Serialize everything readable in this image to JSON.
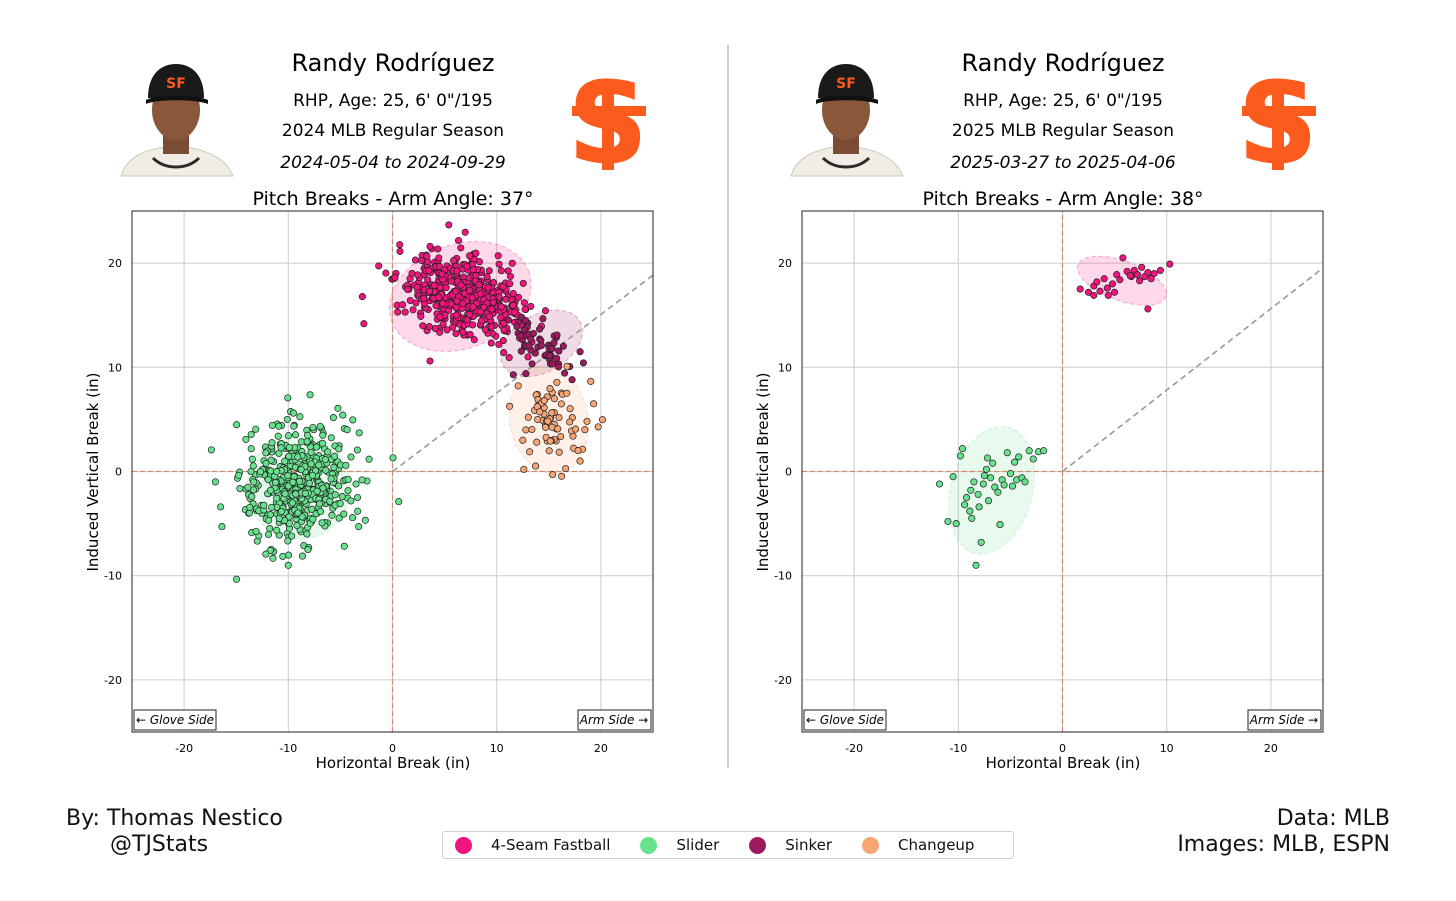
{
  "panels": [
    {
      "player_name": "Randy Rodríguez",
      "bio": "RHP, Age: 25, 6' 0\"/195",
      "season": "2024 MLB Regular Season",
      "date_range": "2024-05-04 to 2024-09-29",
      "photo_icon": "player-headshot-icon",
      "logo_icon": "sf-giants-logo-icon"
    },
    {
      "player_name": "Randy Rodríguez",
      "bio": "RHP, Age: 25, 6' 0\"/195",
      "season": "2025 MLB Regular Season",
      "date_range": "2025-03-27 to 2025-04-06",
      "photo_icon": "player-headshot-icon",
      "logo_icon": "sf-giants-logo-icon"
    }
  ],
  "footer": {
    "author": "By: Thomas Nestico",
    "handle": "@TJStats",
    "data_source": "Data: MLB",
    "images_source": "Images: MLB, ESPN"
  },
  "legend": [
    {
      "label": "4-Seam Fastball",
      "color": "#f2147d"
    },
    {
      "label": "Slider",
      "color": "#67e18d"
    },
    {
      "label": "Sinker",
      "color": "#9c1a5e"
    },
    {
      "label": "Changeup",
      "color": "#f8a574"
    }
  ],
  "colors": {
    "logo": "#fd5a1e",
    "cap": "#1a1a1a",
    "zero_line": "#d08c70",
    "arm_line": "#999999",
    "grid": "#cccccc"
  },
  "chart_data": [
    {
      "type": "scatter",
      "title": "Pitch Breaks - Arm Angle: 37°",
      "xlabel": "Horizontal Break (in)",
      "ylabel": "Induced Vertical Break (in)",
      "xlim": [
        -25,
        25
      ],
      "ylim": [
        -25,
        25
      ],
      "xticks": [
        -20,
        -10,
        0,
        10,
        20
      ],
      "yticks": [
        -20,
        -10,
        0,
        10,
        20
      ],
      "grid": true,
      "arm_angle": 37,
      "annotations": {
        "glove_side": "← Glove Side",
        "arm_side": "Arm Side →"
      },
      "series": [
        {
          "name": "4-Seam Fastball",
          "color": "#f2147d",
          "n": 480,
          "center": [
            6.7,
            16.8
          ],
          "spread": [
            2.9,
            1.9
          ],
          "corr": -0.35,
          "ellipse": {
            "center": [
              6.5,
              16.8
            ],
            "width_x": 14,
            "width_y": 10,
            "angle": -20
          },
          "outliers": [
            [
              3.6,
              21.6
            ],
            [
              3.6,
              10.6
            ],
            [
              0.5,
              15.3
            ],
            [
              2.2,
              20.3
            ],
            [
              12.2,
              12.8
            ],
            [
              13.0,
              11.0
            ]
          ]
        },
        {
          "name": "Sinker",
          "color": "#9c1a5e",
          "n": 55,
          "center": [
            14.3,
            12.4
          ],
          "spread": [
            1.8,
            1.5
          ],
          "corr": -0.55,
          "ellipse": {
            "center": [
              14.3,
              12.3
            ],
            "width_x": 8.5,
            "width_y": 5.5,
            "angle": -30
          },
          "outliers": [
            [
              18.0,
              11.5
            ],
            [
              12.8,
              9.4
            ]
          ]
        },
        {
          "name": "Slider",
          "color": "#67e18d",
          "n": 470,
          "center": [
            -9.0,
            -1.2
          ],
          "spread": [
            2.7,
            2.9
          ],
          "corr": 0.15,
          "ellipse": {
            "center": [
              -9.0,
              -1.5
            ],
            "width_x": 10,
            "width_y": 10,
            "angle": 0
          },
          "outliers": [
            [
              -9.5,
              5.6
            ],
            [
              -16.5,
              -3.4
            ],
            [
              -17.0,
              -1.0
            ],
            [
              -10.0,
              -9.0
            ],
            [
              -3.2,
              3.7
            ],
            [
              -3.5,
              -1.2
            ]
          ]
        },
        {
          "name": "Changeup",
          "color": "#f8a574",
          "n": 70,
          "center": [
            15.2,
            4.8
          ],
          "spread": [
            1.8,
            2.3
          ],
          "corr": -0.2,
          "ellipse": {
            "center": [
              15.0,
              5.0
            ],
            "width_x": 7.5,
            "width_y": 10.5,
            "angle": -10
          },
          "outliers": [
            [
              12.6,
              0.2
            ],
            [
              12.5,
              3.0
            ],
            [
              19.3,
              6.5
            ],
            [
              18.0,
              1.0
            ]
          ]
        }
      ]
    },
    {
      "type": "scatter",
      "title": "Pitch Breaks - Arm Angle: 38°",
      "xlabel": "Horizontal Break (in)",
      "ylabel": "Induced Vertical Break (in)",
      "xlim": [
        -25,
        25
      ],
      "ylim": [
        -25,
        25
      ],
      "xticks": [
        -20,
        -10,
        0,
        10,
        20
      ],
      "yticks": [
        -20,
        -10,
        0,
        10,
        20
      ],
      "grid": true,
      "arm_angle": 38,
      "annotations": {
        "glove_side": "← Glove Side",
        "arm_side": "Arm Side →"
      },
      "series": [
        {
          "name": "4-Seam Fastball",
          "color": "#f2147d",
          "n": 28,
          "center": [
            5.5,
            18.4
          ],
          "spread": [
            2.1,
            0.8
          ],
          "corr": 0.35,
          "ellipse": {
            "center": [
              5.7,
              18.3
            ],
            "width_x": 9,
            "width_y": 3.8,
            "angle": 20
          },
          "points": [
            [
              1.7,
              17.5
            ],
            [
              2.5,
              17.2
            ],
            [
              3.0,
              17.8
            ],
            [
              3.3,
              18.2
            ],
            [
              3.6,
              17.3
            ],
            [
              4.0,
              18.5
            ],
            [
              4.3,
              17.6
            ],
            [
              4.4,
              16.9
            ],
            [
              4.8,
              18.0
            ],
            [
              5.2,
              18.9
            ],
            [
              5.5,
              18.4
            ],
            [
              5.8,
              20.5
            ],
            [
              6.2,
              19.2
            ],
            [
              6.6,
              18.7
            ],
            [
              6.9,
              19.3
            ],
            [
              7.2,
              18.9
            ],
            [
              7.6,
              19.6
            ],
            [
              7.9,
              18.7
            ],
            [
              8.2,
              19.1
            ],
            [
              8.5,
              18.5
            ],
            [
              8.8,
              19.0
            ],
            [
              9.4,
              19.3
            ],
            [
              10.3,
              19.9
            ],
            [
              8.2,
              15.6
            ],
            [
              6.5,
              18.8
            ],
            [
              5.0,
              17.2
            ],
            [
              3.0,
              16.9
            ],
            [
              7.4,
              18.3
            ]
          ]
        },
        {
          "name": "Slider",
          "color": "#67e18d",
          "n": 40,
          "center": [
            -6.7,
            -1.5
          ],
          "spread": [
            2.0,
            2.4
          ],
          "corr": 0.5,
          "ellipse": {
            "center": [
              -6.8,
              -1.8
            ],
            "width_x": 7.8,
            "width_y": 12.5,
            "angle": 15
          },
          "points": [
            [
              -11.8,
              -1.2
            ],
            [
              -11.0,
              -4.8
            ],
            [
              -10.5,
              -0.5
            ],
            [
              -10.2,
              -5.0
            ],
            [
              -9.8,
              1.5
            ],
            [
              -9.6,
              2.2
            ],
            [
              -9.4,
              -3.2
            ],
            [
              -9.2,
              -2.5
            ],
            [
              -8.9,
              -3.8
            ],
            [
              -8.8,
              -1.8
            ],
            [
              -8.7,
              -4.5
            ],
            [
              -8.5,
              -1.0
            ],
            [
              -8.3,
              -9.0
            ],
            [
              -8.1,
              -2.2
            ],
            [
              -8.0,
              -3.4
            ],
            [
              -7.8,
              -6.8
            ],
            [
              -7.6,
              -1.2
            ],
            [
              -7.5,
              -0.4
            ],
            [
              -7.3,
              0.2
            ],
            [
              -7.1,
              -2.8
            ],
            [
              -6.9,
              -0.6
            ],
            [
              -6.7,
              0.8
            ],
            [
              -6.5,
              -1.5
            ],
            [
              -6.2,
              -2.0
            ],
            [
              -6.0,
              -5.1
            ],
            [
              -5.8,
              -0.8
            ],
            [
              -5.6,
              -1.3
            ],
            [
              -5.3,
              1.8
            ],
            [
              -5.0,
              -0.2
            ],
            [
              -4.8,
              -1.4
            ],
            [
              -4.6,
              0.9
            ],
            [
              -4.4,
              -0.8
            ],
            [
              -4.2,
              1.4
            ],
            [
              -3.9,
              -0.6
            ],
            [
              -3.6,
              -1.0
            ],
            [
              -3.2,
              2.0
            ],
            [
              -2.8,
              1.2
            ],
            [
              -2.3,
              1.9
            ],
            [
              -1.8,
              2.0
            ],
            [
              -7.2,
              1.3
            ]
          ]
        }
      ]
    }
  ]
}
